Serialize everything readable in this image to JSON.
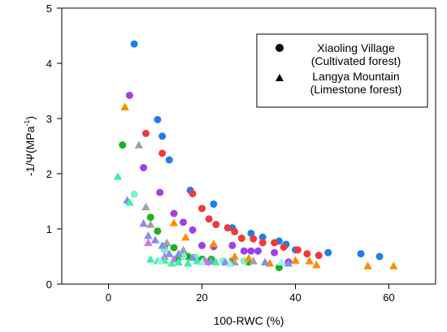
{
  "chart_data": {
    "type": "scatter",
    "xlabel": "100-RWC (%)",
    "ylabel_main": "-1/Ψ(MPa",
    "ylabel_sup": "-1",
    "ylabel_close": ")",
    "xlim": [
      -10,
      70
    ],
    "ylim": [
      0,
      5
    ],
    "xticks": [
      0,
      20,
      40,
      60
    ],
    "yticks": [
      0,
      1,
      2,
      3,
      4,
      5
    ],
    "grid": false,
    "legend_position": "top-right",
    "legend": [
      {
        "marker": "circle",
        "label_line1": "Xiaoling Village",
        "label_line2": "(Cultivated forest)"
      },
      {
        "marker": "triangle",
        "label_line1": "Langya Mountain",
        "label_line2": "(Limestone forest)"
      }
    ],
    "series": [
      {
        "marker": "circle",
        "color": "#1e7fe6",
        "points": [
          [
            5.5,
            4.35
          ],
          [
            10.5,
            2.98
          ],
          [
            11.5,
            2.68
          ],
          [
            13,
            2.25
          ],
          [
            17.5,
            1.7
          ],
          [
            22.5,
            1.45
          ],
          [
            26.5,
            1.02
          ],
          [
            30.5,
            0.92
          ],
          [
            33,
            0.85
          ],
          [
            36.5,
            0.78
          ],
          [
            38,
            0.72
          ],
          [
            40,
            0.62
          ],
          [
            47,
            0.57
          ],
          [
            54,
            0.55
          ],
          [
            58,
            0.5
          ]
        ]
      },
      {
        "marker": "circle",
        "color": "#ee3a3a",
        "points": [
          [
            8,
            2.73
          ],
          [
            11.5,
            2.37
          ],
          [
            18,
            1.64
          ],
          [
            20,
            1.37
          ],
          [
            21.5,
            1.18
          ],
          [
            23,
            1.08
          ],
          [
            25.5,
            1.02
          ],
          [
            27,
            0.95
          ],
          [
            28.5,
            0.83
          ],
          [
            31,
            0.82
          ],
          [
            33,
            0.75
          ],
          [
            35.5,
            0.75
          ],
          [
            37.5,
            0.67
          ],
          [
            40.5,
            0.62
          ],
          [
            42.5,
            0.55
          ],
          [
            45,
            0.52
          ]
        ]
      },
      {
        "marker": "circle",
        "color": "#a040e6",
        "points": [
          [
            4.5,
            3.42
          ],
          [
            7.5,
            2.11
          ],
          [
            11,
            1.66
          ],
          [
            14,
            1.28
          ],
          [
            16,
            1.12
          ],
          [
            18,
            0.98
          ],
          [
            20,
            0.7
          ],
          [
            22.5,
            0.68
          ],
          [
            26.5,
            0.7
          ],
          [
            29,
            0.6
          ],
          [
            30.5,
            0.6
          ],
          [
            32,
            0.6
          ],
          [
            35.5,
            0.57
          ],
          [
            38.5,
            0.4
          ]
        ]
      },
      {
        "marker": "circle",
        "color": "#1fb01f",
        "points": [
          [
            3,
            2.52
          ],
          [
            9,
            1.21
          ],
          [
            10.5,
            0.96
          ],
          [
            12,
            0.68
          ],
          [
            14,
            0.66
          ],
          [
            15,
            0.48
          ],
          [
            17,
            0.5
          ],
          [
            18.5,
            0.48
          ],
          [
            20,
            0.45
          ],
          [
            22,
            0.45
          ],
          [
            26.5,
            0.42
          ],
          [
            30,
            0.4
          ],
          [
            36.5,
            0.3
          ]
        ]
      },
      {
        "marker": "circle",
        "color": "#7ff0c8",
        "points": [
          [
            5.5,
            1.63
          ],
          [
            12,
            0.62
          ],
          [
            16,
            0.5
          ],
          [
            18.5,
            0.47
          ],
          [
            20.5,
            0.42
          ],
          [
            24.5,
            0.42
          ],
          [
            29,
            0.42
          ]
        ]
      },
      {
        "marker": "triangle",
        "color": "#ff8a00",
        "points": [
          [
            3.5,
            3.21
          ],
          [
            14,
            1.11
          ],
          [
            16.5,
            0.85
          ],
          [
            22.5,
            0.73
          ],
          [
            27,
            0.5
          ],
          [
            30,
            0.47
          ],
          [
            34.5,
            0.38
          ],
          [
            40,
            0.43
          ],
          [
            43,
            0.42
          ],
          [
            44.5,
            0.35
          ],
          [
            55.5,
            0.33
          ],
          [
            61,
            0.33
          ]
        ]
      },
      {
        "marker": "triangle",
        "color": "#a0a0a0",
        "points": [
          [
            6.5,
            2.52
          ],
          [
            8,
            1.4
          ],
          [
            9,
            1.08
          ],
          [
            12.5,
            0.75
          ],
          [
            16,
            0.62
          ],
          [
            20.5,
            0.45
          ],
          [
            27,
            0.4
          ],
          [
            31,
            0.42
          ]
        ]
      },
      {
        "marker": "triangle",
        "color": "#8090f0",
        "points": [
          [
            4,
            1.52
          ],
          [
            7.5,
            1.1
          ],
          [
            8.5,
            0.88
          ],
          [
            10,
            0.8
          ],
          [
            11.5,
            0.7
          ],
          [
            13,
            0.55
          ],
          [
            15,
            0.55
          ],
          [
            18,
            0.48
          ],
          [
            22,
            0.42
          ],
          [
            25,
            0.4
          ],
          [
            33.5,
            0.4
          ],
          [
            38.5,
            0.38
          ]
        ]
      },
      {
        "marker": "triangle",
        "color": "#d070f0",
        "points": [
          [
            8.5,
            0.75
          ],
          [
            12,
            0.5
          ],
          [
            14,
            0.45
          ],
          [
            21,
            0.4
          ]
        ]
      },
      {
        "marker": "triangle",
        "color": "#3ff0a0",
        "points": [
          [
            2,
            1.95
          ],
          [
            4.5,
            1.48
          ],
          [
            9,
            0.45
          ],
          [
            10.5,
            0.42
          ],
          [
            12,
            0.43
          ],
          [
            13.5,
            0.38
          ],
          [
            15,
            0.4
          ],
          [
            17,
            0.38
          ],
          [
            19,
            0.42
          ],
          [
            23,
            0.4
          ]
        ]
      },
      {
        "marker": "triangle",
        "color": "#a0f0f0",
        "points": [
          [
            11,
            0.42
          ],
          [
            20,
            0.4
          ],
          [
            26,
            0.37
          ],
          [
            37,
            0.4
          ]
        ]
      }
    ]
  }
}
